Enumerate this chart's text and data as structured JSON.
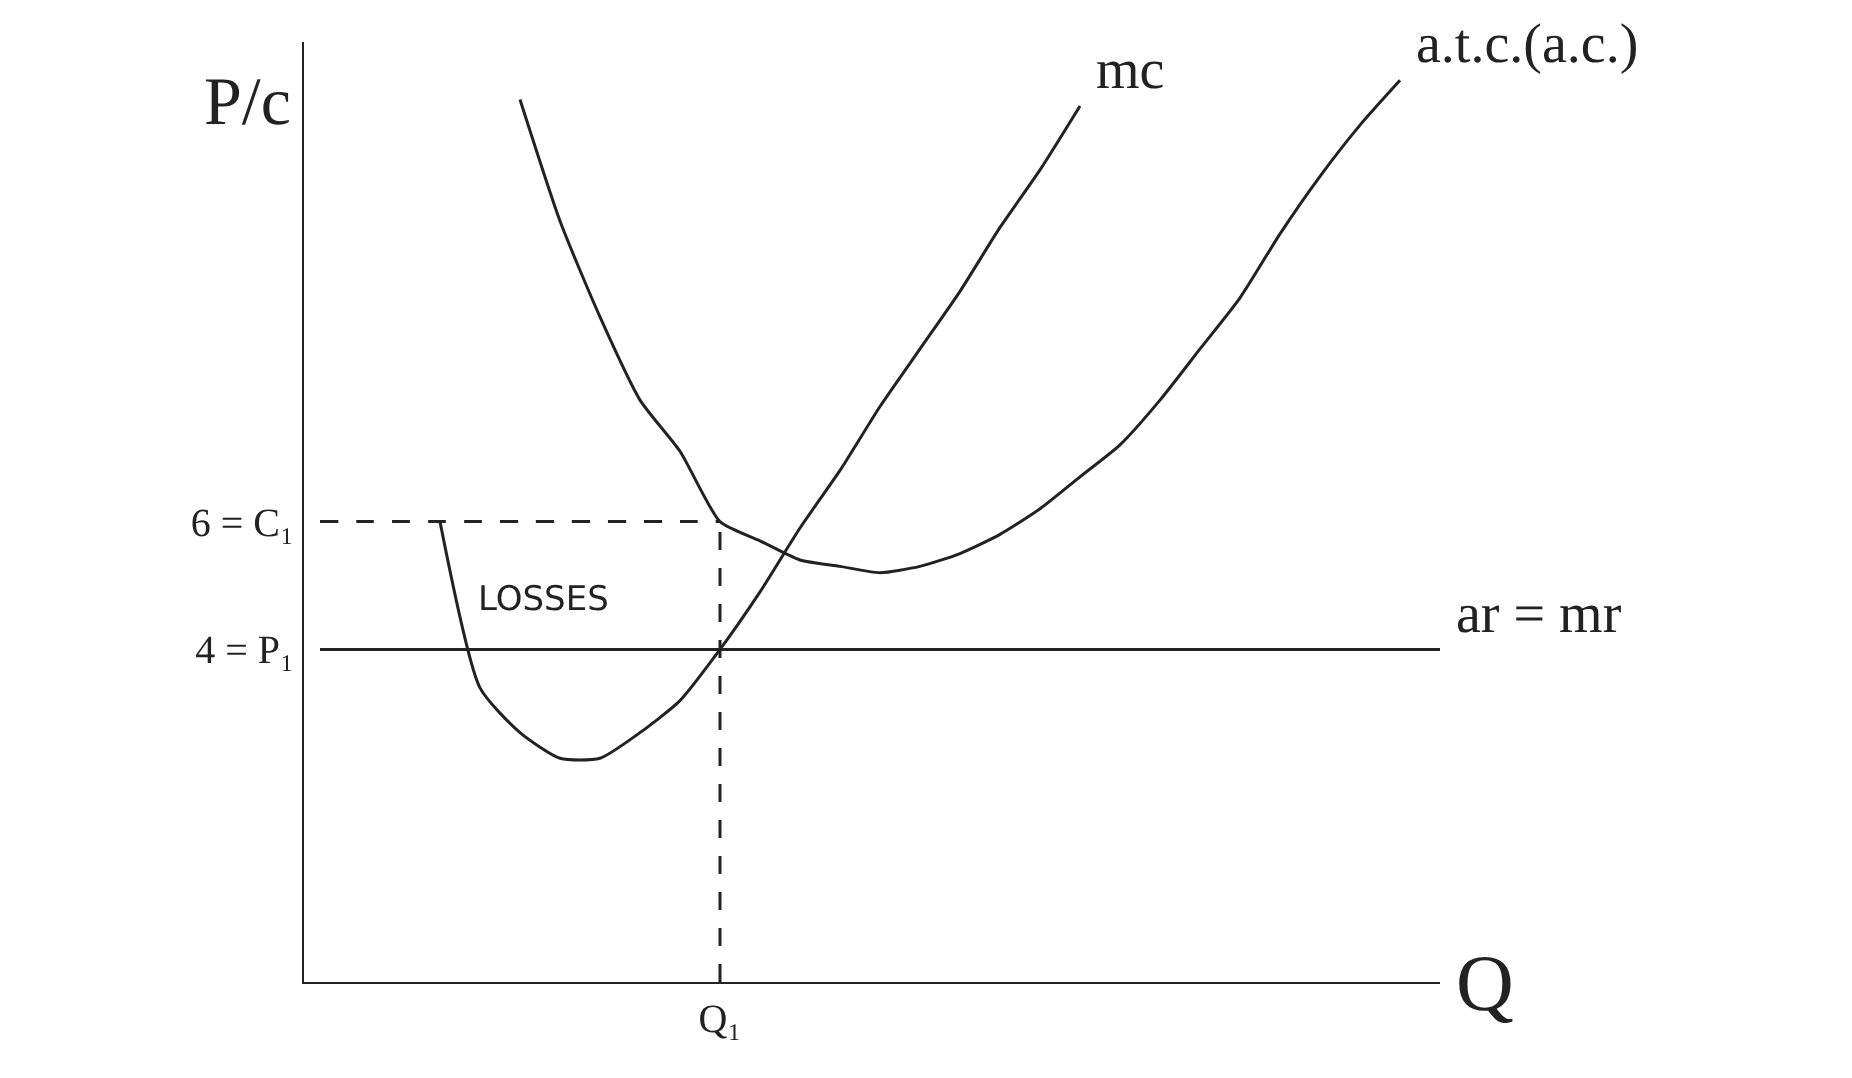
{
  "chart_data": {
    "type": "line",
    "ylabel": "P/c",
    "xlabel": "Q",
    "categories": [
      null,
      null,
      null,
      null,
      null,
      null,
      null,
      null,
      null,
      null,
      "Q₁",
      null,
      null,
      null,
      null,
      null,
      null,
      null,
      null,
      null,
      null,
      null,
      null,
      null,
      null,
      null,
      null,
      null,
      null
    ],
    "ylim": [
      -1.2,
      13.5
    ],
    "yticks": [
      {
        "value": 6,
        "label": "6 = C₁"
      },
      {
        "value": 4,
        "label": "4 = P₁"
      }
    ],
    "series": [
      {
        "name": "mc",
        "color": "#222222",
        "line_style": "solid",
        "values": [
          null,
          null,
          null,
          6.0,
          3.4,
          2.7,
          2.3,
          2.3,
          2.7,
          3.2,
          4.0,
          4.9,
          5.9,
          6.8,
          7.8,
          8.7,
          9.6,
          10.6,
          11.5,
          12.5,
          null,
          null,
          null,
          null,
          null,
          null,
          null,
          null,
          null
        ]
      },
      {
        "name": "a.t.c.(a.c.)",
        "color": "#222222",
        "line_style": "solid",
        "values": [
          null,
          null,
          null,
          null,
          null,
          12.6,
          10.7,
          9.2,
          7.9,
          7.1,
          6.0,
          5.7,
          5.4,
          5.3,
          5.2,
          5.3,
          5.5,
          5.8,
          6.2,
          6.7,
          7.2,
          7.9,
          8.7,
          9.5,
          10.5,
          11.4,
          12.2,
          12.9,
          null
        ]
      },
      {
        "name": "ar = mr",
        "color": "#222222",
        "line_style": "solid",
        "values": [
          4,
          4,
          4,
          4,
          4,
          4,
          4,
          4,
          4,
          4,
          4,
          4,
          4,
          4,
          4,
          4,
          4,
          4,
          4,
          4,
          4,
          4,
          4,
          4,
          4,
          4,
          4,
          4,
          4
        ]
      },
      {
        "color": "#222222",
        "line_style": "dashed",
        "values": [
          6,
          6,
          6,
          6,
          6,
          6,
          6,
          6,
          6,
          6,
          6,
          null,
          null,
          null,
          null,
          null,
          null,
          null,
          null,
          null,
          null,
          null,
          null,
          null,
          null,
          null,
          null,
          null,
          null
        ]
      },
      {
        "color": "#222222",
        "line_style": "dashed",
        "x": [
          "Q₁",
          "Q₁"
        ],
        "values": [
          -1.2,
          6
        ]
      }
    ],
    "annotations": [
      "LOSSES"
    ],
    "grid": false,
    "legend": false,
    "marker": "none"
  }
}
